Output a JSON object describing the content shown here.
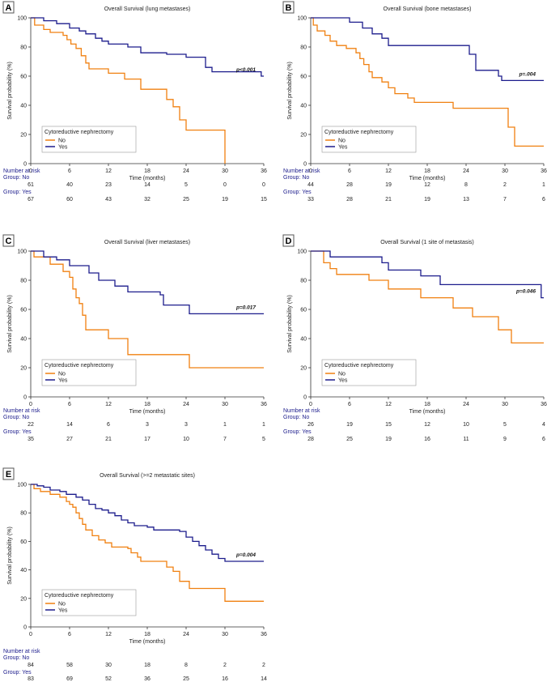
{
  "colors": {
    "no": "#f08010",
    "yes": "#1c1c8c",
    "axis": "#333333",
    "text": "#222222",
    "risk_label": "#1c1c8c",
    "panel_letter_border": "#555555"
  },
  "chart_data": [
    {
      "type": "line",
      "panel_letter": "A",
      "title": "Overall Survival (lung metastases)",
      "xlabel": "Time (months)",
      "ylabel": "Survival probability (%)",
      "xlim": [
        0,
        36
      ],
      "ylim": [
        0,
        100
      ],
      "xticks": [
        0,
        6,
        12,
        18,
        24,
        30,
        36
      ],
      "yticks": [
        0,
        20,
        40,
        60,
        80,
        100
      ],
      "pvalue": "p<0.001",
      "legend": {
        "title": "Cytoreductive nephrectomy",
        "entries": [
          "No",
          "Yes"
        ],
        "position": "bottom-left"
      },
      "series": [
        {
          "name": "No",
          "step": [
            [
              0,
              100
            ],
            [
              0.6,
              95
            ],
            [
              2,
              92
            ],
            [
              3,
              90
            ],
            [
              5,
              88
            ],
            [
              5.6,
              85
            ],
            [
              6.2,
              82
            ],
            [
              7,
              79
            ],
            [
              7.8,
              74
            ],
            [
              8.5,
              69
            ],
            [
              9,
              65
            ],
            [
              12,
              62
            ],
            [
              14.5,
              58
            ],
            [
              17,
              51
            ],
            [
              20,
              51
            ],
            [
              21,
              44
            ],
            [
              22,
              39
            ],
            [
              23,
              30
            ],
            [
              24,
              23
            ],
            [
              30,
              23
            ],
            [
              30,
              0
            ]
          ]
        },
        {
          "name": "Yes",
          "step": [
            [
              0,
              100
            ],
            [
              2,
              98
            ],
            [
              4,
              96
            ],
            [
              6,
              93
            ],
            [
              7.5,
              91
            ],
            [
              8.5,
              89
            ],
            [
              10,
              86
            ],
            [
              11,
              84
            ],
            [
              12,
              82
            ],
            [
              15,
              80
            ],
            [
              17,
              76
            ],
            [
              21,
              75
            ],
            [
              24,
              73
            ],
            [
              27,
              66
            ],
            [
              28,
              63
            ],
            [
              35.5,
              63
            ],
            [
              35.6,
              60
            ],
            [
              36,
              60
            ]
          ]
        }
      ],
      "risk_table": {
        "title": "Number at risk",
        "groups": [
          {
            "label": "Group: No",
            "values": [
              61,
              40,
              23,
              14,
              5,
              0,
              0
            ]
          },
          {
            "label": "Group: Yes",
            "values": [
              67,
              60,
              43,
              32,
              25,
              19,
              15
            ]
          }
        ]
      }
    },
    {
      "type": "line",
      "panel_letter": "B",
      "title": "Overall Survival (bone metastases)",
      "xlabel": "Time (months)",
      "ylabel": "Survival probability (%)",
      "xlim": [
        0,
        36
      ],
      "ylim": [
        0,
        100
      ],
      "xticks": [
        0,
        6,
        12,
        18,
        24,
        30,
        36
      ],
      "yticks": [
        0,
        20,
        40,
        60,
        80,
        100
      ],
      "pvalue": "p=.004",
      "legend": {
        "title": "Cytoreductive nephrectomy",
        "entries": [
          "No",
          "Yes"
        ],
        "position": "bottom-left"
      },
      "series": [
        {
          "name": "No",
          "step": [
            [
              0,
              100
            ],
            [
              0.4,
              95
            ],
            [
              1,
              91
            ],
            [
              2.2,
              88
            ],
            [
              3,
              84
            ],
            [
              4,
              81
            ],
            [
              5.5,
              79
            ],
            [
              7,
              76
            ],
            [
              7.6,
              72
            ],
            [
              8.2,
              68
            ],
            [
              9,
              63
            ],
            [
              9.5,
              59
            ],
            [
              11,
              56
            ],
            [
              12,
              52
            ],
            [
              13,
              48
            ],
            [
              15,
              45
            ],
            [
              16,
              42
            ],
            [
              21,
              42
            ],
            [
              22,
              38
            ],
            [
              30,
              38
            ],
            [
              30.5,
              25
            ],
            [
              31.5,
              12
            ],
            [
              36,
              12
            ]
          ]
        },
        {
          "name": "Yes",
          "step": [
            [
              0,
              100
            ],
            [
              6,
              97
            ],
            [
              8,
              93
            ],
            [
              9.5,
              89
            ],
            [
              11,
              86
            ],
            [
              12,
              81
            ],
            [
              24,
              81
            ],
            [
              24.5,
              75
            ],
            [
              25.5,
              64
            ],
            [
              29,
              60
            ],
            [
              29.5,
              57
            ],
            [
              36,
              57
            ]
          ]
        }
      ],
      "risk_table": {
        "title": "Number at risk",
        "groups": [
          {
            "label": "Group: No",
            "values": [
              44,
              28,
              19,
              12,
              8,
              2,
              1
            ]
          },
          {
            "label": "Group: Yes",
            "values": [
              33,
              28,
              21,
              19,
              13,
              7,
              6
            ]
          }
        ]
      }
    },
    {
      "type": "line",
      "panel_letter": "C",
      "title": "Overall Survival (liver metastases)",
      "xlabel": "Time (months)",
      "ylabel": "Survival probability (%)",
      "xlim": [
        0,
        36
      ],
      "ylim": [
        0,
        100
      ],
      "xticks": [
        0,
        6,
        12,
        18,
        24,
        30,
        36
      ],
      "yticks": [
        0,
        20,
        40,
        60,
        80,
        100
      ],
      "pvalue": "p=0.017",
      "legend": {
        "title": "Cytoreductive nephrectomy",
        "entries": [
          "No",
          "Yes"
        ],
        "position": "bottom-left"
      },
      "series": [
        {
          "name": "No",
          "step": [
            [
              0,
              100
            ],
            [
              0.5,
              96
            ],
            [
              3,
              91
            ],
            [
              5,
              86
            ],
            [
              6,
              82
            ],
            [
              6.5,
              74
            ],
            [
              7,
              68
            ],
            [
              7.5,
              64
            ],
            [
              8,
              56
            ],
            [
              8.5,
              46
            ],
            [
              12,
              40
            ],
            [
              15,
              29
            ],
            [
              24,
              29
            ],
            [
              24.5,
              20
            ],
            [
              36,
              20
            ]
          ]
        },
        {
          "name": "Yes",
          "step": [
            [
              0,
              100
            ],
            [
              2,
              96
            ],
            [
              4,
              94
            ],
            [
              6,
              90
            ],
            [
              9,
              85
            ],
            [
              10.5,
              80
            ],
            [
              13,
              76
            ],
            [
              15,
              72
            ],
            [
              20,
              70
            ],
            [
              20.5,
              63
            ],
            [
              24,
              63
            ],
            [
              24.5,
              57
            ],
            [
              36,
              57
            ]
          ]
        }
      ],
      "risk_table": {
        "title": "Number at risk",
        "groups": [
          {
            "label": "Group: No",
            "values": [
              22,
              14,
              6,
              3,
              3,
              1,
              1
            ]
          },
          {
            "label": "Group: Yes",
            "values": [
              35,
              27,
              21,
              17,
              10,
              7,
              5
            ]
          }
        ]
      }
    },
    {
      "type": "line",
      "panel_letter": "D",
      "title": "Overall Survival (1 site of metastasis)",
      "xlabel": "Time (months)",
      "ylabel": "Survival probability (%)",
      "xlim": [
        0,
        36
      ],
      "ylim": [
        0,
        100
      ],
      "xticks": [
        0,
        6,
        12,
        18,
        24,
        30,
        36
      ],
      "yticks": [
        0,
        20,
        40,
        60,
        80,
        100
      ],
      "pvalue": "p=0.046",
      "legend": {
        "title": "Cytoreductive nephrectomy",
        "entries": [
          "No",
          "Yes"
        ],
        "position": "bottom-left"
      },
      "series": [
        {
          "name": "No",
          "step": [
            [
              0,
              100
            ],
            [
              2,
              92
            ],
            [
              3,
              88
            ],
            [
              4,
              84
            ],
            [
              9,
              80
            ],
            [
              12,
              74
            ],
            [
              17,
              68
            ],
            [
              22,
              61
            ],
            [
              25,
              55
            ],
            [
              29,
              46
            ],
            [
              31,
              37
            ],
            [
              36,
              37
            ]
          ]
        },
        {
          "name": "Yes",
          "step": [
            [
              0,
              100
            ],
            [
              3,
              96
            ],
            [
              11,
              92
            ],
            [
              12,
              87
            ],
            [
              17,
              83
            ],
            [
              20,
              77
            ],
            [
              35.5,
              77
            ],
            [
              35.6,
              68
            ],
            [
              36,
              68
            ]
          ]
        }
      ],
      "risk_table": {
        "title": "Number at risk",
        "groups": [
          {
            "label": "Group: No",
            "values": [
              26,
              19,
              15,
              12,
              10,
              5,
              4
            ]
          },
          {
            "label": "Group: Yes",
            "values": [
              28,
              25,
              19,
              16,
              11,
              9,
              6
            ]
          }
        ]
      }
    },
    {
      "type": "line",
      "panel_letter": "E",
      "title": "Overall Survival (>=2 metastatic sites)",
      "xlabel": "Time (months)",
      "ylabel": "Survival probability (%)",
      "xlim": [
        0,
        36
      ],
      "ylim": [
        0,
        100
      ],
      "xticks": [
        0,
        6,
        12,
        18,
        24,
        30,
        36
      ],
      "yticks": [
        0,
        20,
        40,
        60,
        80,
        100
      ],
      "pvalue": "p=0.004",
      "legend": {
        "title": "Cytoreductive nephrectomy",
        "entries": [
          "No",
          "Yes"
        ],
        "position": "bottom-left"
      },
      "series": [
        {
          "name": "No",
          "step": [
            [
              0,
              100
            ],
            [
              0.5,
              97
            ],
            [
              1.5,
              95
            ],
            [
              3,
              93
            ],
            [
              4.5,
              91
            ],
            [
              5.5,
              88
            ],
            [
              6,
              86
            ],
            [
              6.5,
              84
            ],
            [
              7,
              80
            ],
            [
              7.5,
              76
            ],
            [
              8,
              72
            ],
            [
              8.5,
              68
            ],
            [
              9.5,
              64
            ],
            [
              10.5,
              61
            ],
            [
              11.5,
              59
            ],
            [
              12.5,
              56
            ],
            [
              15,
              55
            ],
            [
              15.5,
              52
            ],
            [
              16.5,
              49
            ],
            [
              17,
              46
            ],
            [
              20,
              46
            ],
            [
              21,
              42
            ],
            [
              22,
              39
            ],
            [
              23,
              32
            ],
            [
              24.5,
              27
            ],
            [
              30,
              27
            ],
            [
              30,
              18
            ],
            [
              36,
              18
            ]
          ]
        },
        {
          "name": "Yes",
          "step": [
            [
              0,
              100
            ],
            [
              1,
              99
            ],
            [
              2,
              98
            ],
            [
              3,
              96
            ],
            [
              4.5,
              95
            ],
            [
              5.5,
              93
            ],
            [
              7,
              91
            ],
            [
              8,
              89
            ],
            [
              9,
              86
            ],
            [
              10,
              83
            ],
            [
              11,
              82
            ],
            [
              12,
              80
            ],
            [
              13,
              78
            ],
            [
              14,
              75
            ],
            [
              15,
              73
            ],
            [
              16,
              71
            ],
            [
              18,
              70
            ],
            [
              19,
              68
            ],
            [
              23,
              67
            ],
            [
              24,
              63
            ],
            [
              25,
              60
            ],
            [
              26,
              57
            ],
            [
              27,
              54
            ],
            [
              28,
              51
            ],
            [
              29,
              48
            ],
            [
              30,
              46
            ],
            [
              36,
              46
            ]
          ]
        }
      ],
      "risk_table": {
        "title": "Number at risk",
        "groups": [
          {
            "label": "Group: No",
            "values": [
              84,
              58,
              30,
              18,
              8,
              2,
              2
            ]
          },
          {
            "label": "Group: Yes",
            "values": [
              83,
              69,
              52,
              36,
              25,
              16,
              14
            ]
          }
        ]
      }
    }
  ]
}
